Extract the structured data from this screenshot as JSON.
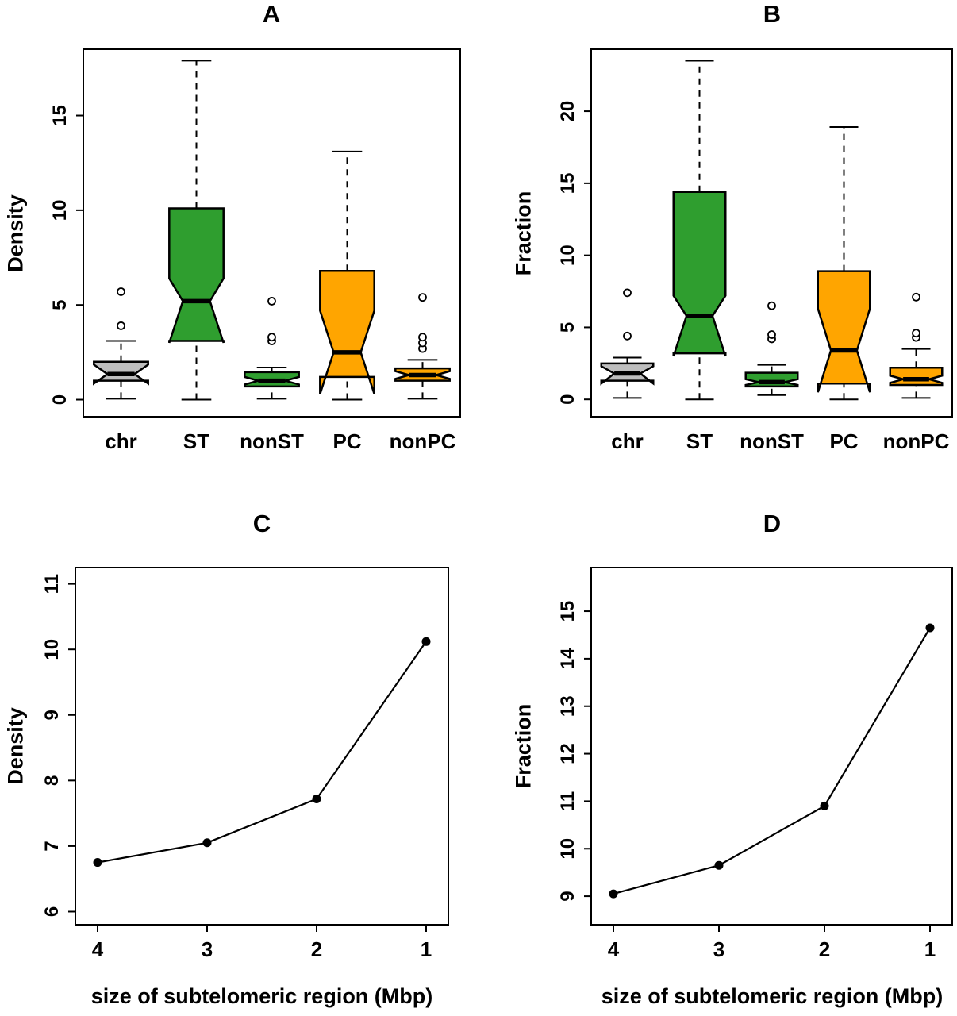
{
  "figure": {
    "background": "#ffffff"
  },
  "chart_data": [
    {
      "type": "boxplot",
      "title": "A",
      "ylabel": "Density",
      "ylim": [
        -0.9,
        18.5
      ],
      "yticks": [
        0,
        5,
        10,
        15
      ],
      "categories": [
        "chr",
        "ST",
        "nonST",
        "PC",
        "nonPC"
      ],
      "boxes": [
        {
          "color": "#BEBEBE",
          "low": 0.05,
          "q1": 1.0,
          "median": 1.35,
          "q3": 2.0,
          "high": 3.1,
          "notch_low": 0.85,
          "notch_high": 1.85,
          "outliers": [
            3.9,
            5.7
          ]
        },
        {
          "color": "#2F9E2F",
          "low": 0.0,
          "q1": 3.1,
          "median": 5.2,
          "q3": 10.1,
          "high": 17.9,
          "notch_low": 3.0,
          "notch_high": 6.4,
          "outliers": []
        },
        {
          "color": "#2F9E2F",
          "low": 0.05,
          "q1": 0.7,
          "median": 1.0,
          "q3": 1.45,
          "high": 1.7,
          "notch_low": 0.8,
          "notch_high": 1.2,
          "outliers": [
            3.1,
            3.3,
            5.2
          ]
        },
        {
          "color": "#FFA500",
          "low": 0.0,
          "q1": 1.2,
          "median": 2.5,
          "q3": 6.8,
          "high": 13.1,
          "notch_low": 0.3,
          "notch_high": 4.7,
          "outliers": []
        },
        {
          "color": "#FFA500",
          "low": 0.05,
          "q1": 1.0,
          "median": 1.3,
          "q3": 1.65,
          "high": 2.1,
          "notch_low": 1.1,
          "notch_high": 1.5,
          "outliers": [
            2.7,
            3.0,
            3.3,
            5.4
          ]
        }
      ]
    },
    {
      "type": "boxplot",
      "title": "B",
      "ylabel": "Fraction",
      "ylim": [
        -1.2,
        24.3
      ],
      "yticks": [
        0,
        5,
        10,
        15,
        20
      ],
      "categories": [
        "chr",
        "ST",
        "nonST",
        "PC",
        "nonPC"
      ],
      "boxes": [
        {
          "color": "#BEBEBE",
          "low": 0.1,
          "q1": 1.3,
          "median": 1.8,
          "q3": 2.5,
          "high": 2.9,
          "notch_low": 1.1,
          "notch_high": 2.3,
          "outliers": [
            4.4,
            7.4
          ]
        },
        {
          "color": "#2F9E2F",
          "low": 0.0,
          "q1": 3.2,
          "median": 5.8,
          "q3": 14.4,
          "high": 23.5,
          "notch_low": 3.0,
          "notch_high": 7.2,
          "outliers": []
        },
        {
          "color": "#2F9E2F",
          "low": 0.3,
          "q1": 0.9,
          "median": 1.2,
          "q3": 1.85,
          "high": 2.4,
          "notch_low": 1.0,
          "notch_high": 1.4,
          "outliers": [
            4.2,
            4.5,
            6.5
          ]
        },
        {
          "color": "#FFA500",
          "low": 0.0,
          "q1": 1.1,
          "median": 3.4,
          "q3": 8.9,
          "high": 18.9,
          "notch_low": 0.5,
          "notch_high": 6.3,
          "outliers": []
        },
        {
          "color": "#FFA500",
          "low": 0.1,
          "q1": 1.0,
          "median": 1.4,
          "q3": 2.2,
          "high": 3.5,
          "notch_low": 1.15,
          "notch_high": 1.65,
          "outliers": [
            4.3,
            4.6,
            7.1
          ]
        }
      ]
    },
    {
      "type": "line",
      "title": "C",
      "ylabel": "Density",
      "xlabel": "size of subtelomeric region (Mbp)",
      "x": [
        4,
        3,
        2,
        1
      ],
      "y": [
        6.75,
        7.05,
        7.72,
        10.12
      ],
      "ylim": [
        5.8,
        11.25
      ],
      "yticks": [
        6,
        7,
        8,
        9,
        10,
        11
      ],
      "x_reversed": true
    },
    {
      "type": "line",
      "title": "D",
      "ylabel": "Fraction",
      "xlabel": "size of subtelomeric region (Mbp)",
      "x": [
        4,
        3,
        2,
        1
      ],
      "y": [
        9.05,
        9.65,
        10.9,
        14.65
      ],
      "ylim": [
        8.4,
        15.92
      ],
      "yticks": [
        9,
        10,
        11,
        12,
        13,
        14,
        15
      ],
      "x_reversed": true
    }
  ]
}
